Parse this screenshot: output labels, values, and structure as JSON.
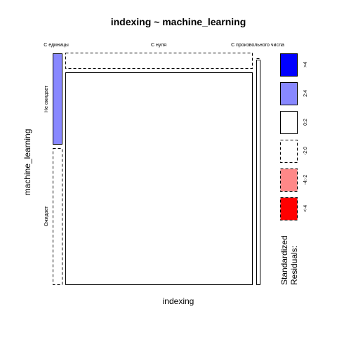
{
  "chart_data": {
    "type": "mosaic",
    "title": "indexing ~ machine_learning",
    "xlabel": "indexing",
    "ylabel": "machine_learning",
    "x_categories": [
      "С единицы",
      "С нуля",
      "С произвольного числа"
    ],
    "y_categories": [
      "Не ожидает",
      "Ожидает"
    ],
    "cells": [
      {
        "x": "С единицы",
        "y": "Не ожидает",
        "residual_class": "2:4",
        "border": "solid"
      },
      {
        "x": "С единицы",
        "y": "Ожидает",
        "residual_class": "-2:0",
        "border": "dashed"
      },
      {
        "x": "С нуля",
        "y": "Не ожидает",
        "residual_class": "-2:0",
        "border": "dashed"
      },
      {
        "x": "С нуля",
        "y": "Ожидает",
        "residual_class": "0:2",
        "border": "solid"
      },
      {
        "x": "С произвольного числа",
        "y": "Не ожидает",
        "residual_class": "-2:0",
        "border": "dashed"
      },
      {
        "x": "С произвольного числа",
        "y": "Ожидает",
        "residual_class": "0:2",
        "border": "solid"
      }
    ],
    "legend": {
      "title_line1": "Standardized",
      "title_line2": "Residuals:",
      "position": "right",
      "items": [
        {
          "label": ">4",
          "color": "#0000ff",
          "border": "solid"
        },
        {
          "label": "2:4",
          "color": "#8888ff",
          "border": "solid"
        },
        {
          "label": "0:2",
          "color": "#ffffff",
          "border": "solid"
        },
        {
          "label": "-2:0",
          "color": "#ffffff",
          "border": "dashed"
        },
        {
          "label": "-4:-2",
          "color": "#ff8888",
          "border": "dashed"
        },
        {
          "label": "<-4",
          "color": "#ff0000",
          "border": "dashed"
        }
      ]
    }
  }
}
